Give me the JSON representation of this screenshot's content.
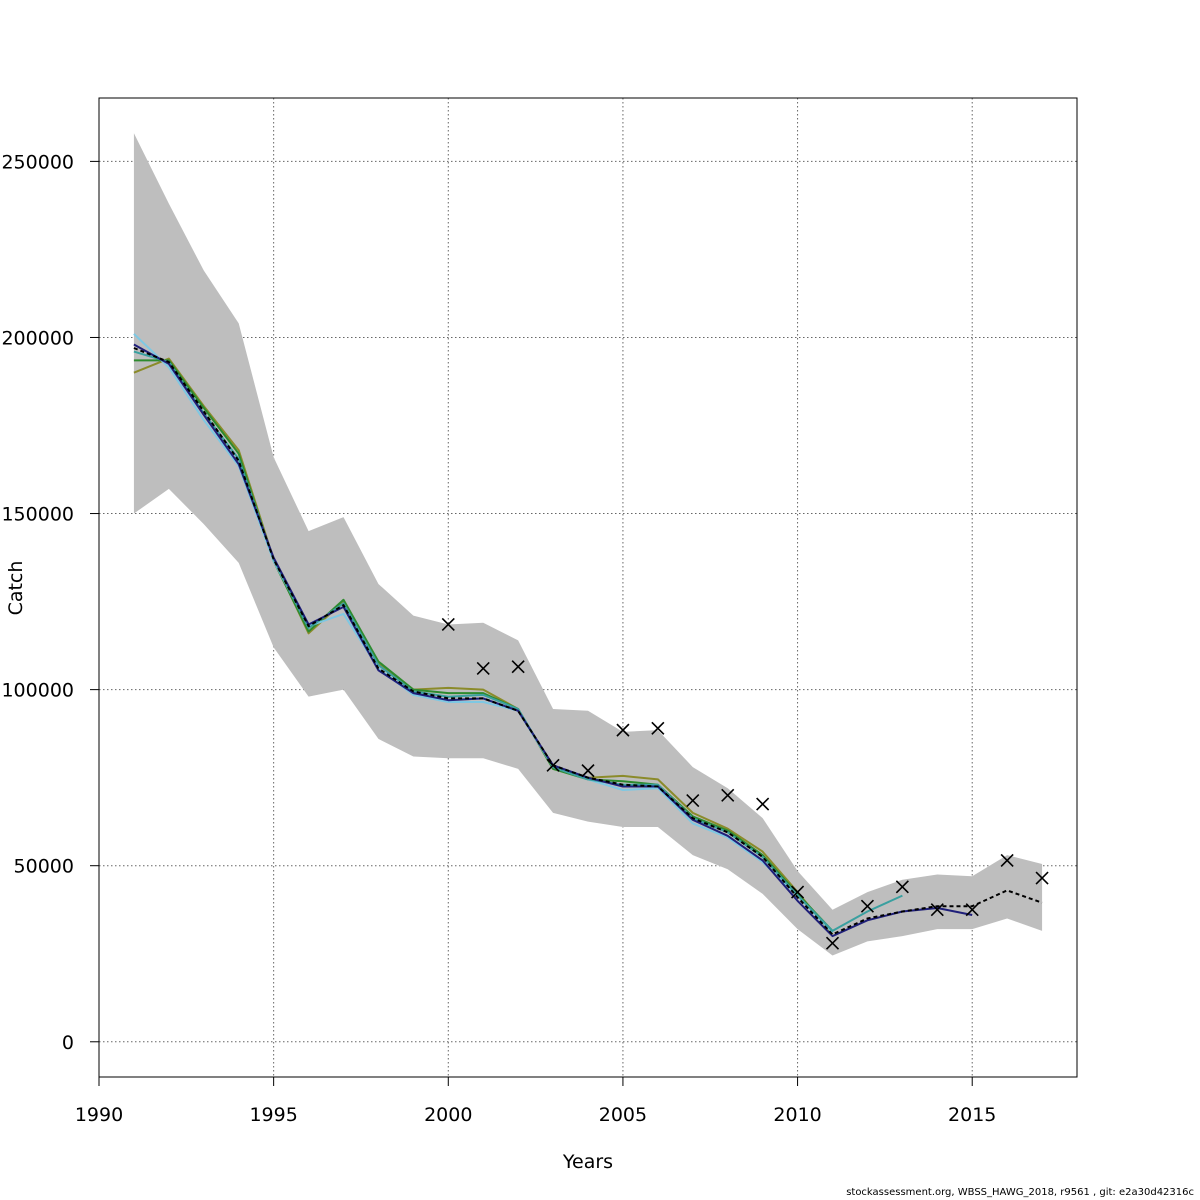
{
  "chart_data": {
    "type": "line",
    "title": "",
    "xlabel": "Years",
    "ylabel": "Catch",
    "xlim": [
      1990,
      2018
    ],
    "ylim": [
      -10000,
      268000
    ],
    "xticks": [
      1990,
      1995,
      2000,
      2005,
      2010,
      2015
    ],
    "yticks": [
      0,
      50000,
      100000,
      150000,
      200000,
      250000
    ],
    "grid": true,
    "colors": {
      "band": "#bebebe",
      "reference": "#000000",
      "observed": "#000000",
      "series": [
        "#1f1f7a",
        "#3aa0a0",
        "#7ec8e3",
        "#2e8b2e",
        "#8b8b2a"
      ]
    },
    "band": {
      "x": [
        1991,
        1992,
        1993,
        1994,
        1995,
        1996,
        1997,
        1998,
        1999,
        2000,
        2001,
        2002,
        2003,
        2004,
        2005,
        2006,
        2007,
        2008,
        2009,
        2010,
        2011,
        2012,
        2013,
        2014,
        2015,
        2016,
        2017
      ],
      "lower": [
        150000,
        157000,
        147000,
        136000,
        112000,
        98000,
        100000,
        86000,
        81000,
        80500,
        80500,
        77500,
        65000,
        62500,
        61000,
        61000,
        53000,
        49000,
        42000,
        32000,
        24500,
        28500,
        30000,
        32000,
        32000,
        35000,
        31500
      ],
      "upper": [
        258000,
        238000,
        219000,
        204000,
        166000,
        145000,
        149000,
        130000,
        121000,
        118500,
        119000,
        114000,
        94500,
        94000,
        88000,
        88500,
        78000,
        72000,
        63500,
        48500,
        37500,
        42500,
        46000,
        47500,
        47000,
        53000,
        50500
      ]
    },
    "reference": {
      "x": [
        1991,
        1992,
        1993,
        1994,
        1995,
        1996,
        1997,
        1998,
        1999,
        2000,
        2001,
        2002,
        2003,
        2004,
        2005,
        2006,
        2007,
        2008,
        2009,
        2010,
        2011,
        2012,
        2013,
        2014,
        2015,
        2016,
        2017
      ],
      "values": [
        197000,
        193000,
        179000,
        165000,
        137000,
        118000,
        124000,
        106000,
        99500,
        97500,
        97500,
        94000,
        78500,
        75000,
        73000,
        72500,
        63500,
        59500,
        52500,
        41000,
        30500,
        35000,
        37000,
        38500,
        38500,
        43000,
        39500
      ]
    },
    "observed": {
      "x": [
        2000,
        2001,
        2002,
        2003,
        2004,
        2005,
        2006,
        2007,
        2008,
        2009,
        2010,
        2011,
        2012,
        2013,
        2014,
        2015,
        2016,
        2017
      ],
      "values": [
        118500,
        106000,
        106500,
        78500,
        77000,
        88500,
        89000,
        68500,
        70000,
        67500,
        42500,
        28000,
        38500,
        44000,
        37500,
        37500,
        51500,
        46500
      ]
    },
    "series": [
      {
        "x": [
          1991,
          1992,
          1993,
          1994,
          1995,
          1996,
          1997,
          1998,
          1999,
          2000,
          2001,
          2002,
          2003,
          2004,
          2005,
          2006,
          2007,
          2008,
          2009,
          2010,
          2011,
          2012,
          2013,
          2014,
          2015
        ],
        "values": [
          198000,
          192500,
          178000,
          164000,
          137500,
          118500,
          123500,
          105500,
          99000,
          97000,
          97500,
          94000,
          78500,
          75000,
          72500,
          72500,
          63000,
          58500,
          51500,
          40000,
          30000,
          34500,
          37000,
          38000,
          36000
        ]
      },
      {
        "x": [
          1991,
          1992,
          1993,
          1994,
          1995,
          1996,
          1997,
          1998,
          1999,
          2000,
          2001,
          2002,
          2003,
          2004,
          2005,
          2006,
          2007,
          2008,
          2009,
          2010,
          2011,
          2012,
          2013
        ],
        "values": [
          196000,
          193000,
          178500,
          165500,
          137000,
          117500,
          124500,
          107000,
          99500,
          98000,
          98500,
          94500,
          78000,
          74500,
          73000,
          73000,
          63500,
          59500,
          52500,
          41500,
          31500,
          37000,
          41500
        ]
      },
      {
        "x": [
          1991,
          1992,
          1993,
          1994,
          1995,
          1996,
          1997,
          1998,
          1999,
          2000,
          2001,
          2002,
          2003,
          2004,
          2005,
          2006,
          2007,
          2008,
          2009,
          2010,
          2011
        ],
        "values": [
          201000,
          191500,
          176500,
          163500,
          136500,
          118000,
          121500,
          106000,
          98500,
          96500,
          96500,
          94000,
          78000,
          74500,
          71500,
          72000,
          62000,
          58000,
          51000,
          41500,
          31000
        ]
      },
      {
        "x": [
          1991,
          1992,
          1993,
          1994,
          1995,
          1996,
          1997,
          1998,
          1999,
          2000,
          2001,
          2002,
          2003,
          2004,
          2005,
          2006,
          2007,
          2008,
          2009,
          2010,
          2011
        ],
        "values": [
          193500,
          193500,
          180000,
          167000,
          136500,
          116500,
          125500,
          108000,
          100000,
          99000,
          99000,
          94500,
          77500,
          74500,
          74000,
          73000,
          64000,
          60000,
          53000,
          42000,
          31500
        ]
      },
      {
        "x": [
          1991,
          1992,
          1993,
          1994,
          1995,
          1996,
          1997,
          1998,
          1999,
          2000,
          2001,
          2002,
          2003,
          2004,
          2005,
          2006,
          2007,
          2008,
          2009,
          2010,
          2011
        ],
        "values": [
          190000,
          194000,
          180500,
          168000,
          137000,
          116000,
          125000,
          107500,
          100000,
          100500,
          100000,
          94500,
          77500,
          75000,
          75500,
          74500,
          65000,
          60500,
          54000,
          42500,
          30500
        ]
      }
    ]
  },
  "footer": "stockassessment.org, WBSS_HAWG_2018, r9561 , git: e2a30d42316c"
}
